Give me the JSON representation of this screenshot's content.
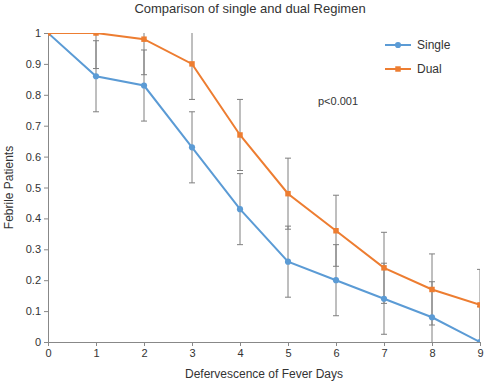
{
  "chart_data": {
    "type": "line",
    "title": "Comparison of single and dual Regimen",
    "x_label": "Defervescence of Fever Days",
    "y_label": "Febrile Patients",
    "x": [
      0,
      1,
      2,
      3,
      4,
      5,
      6,
      7,
      8,
      9
    ],
    "series": [
      {
        "name": "Single",
        "color": "#5b9bd5",
        "marker": "circle",
        "values": [
          1,
          0.86,
          0.83,
          0.63,
          0.43,
          0.26,
          0.2,
          0.14,
          0.08,
          0
        ],
        "errors": [
          0,
          0.115,
          0.115,
          0.115,
          0.115,
          0.115,
          0.115,
          0.115,
          0.115,
          0.115
        ]
      },
      {
        "name": "Dual",
        "color": "#ed7d31",
        "marker": "square",
        "values": [
          1,
          1,
          0.98,
          0.9,
          0.67,
          0.48,
          0.36,
          0.24,
          0.17,
          0.12
        ],
        "errors": [
          0,
          0.115,
          0.115,
          0.115,
          0.115,
          0.115,
          0.115,
          0.115,
          0.115,
          0.115
        ]
      }
    ],
    "xlim": [
      0,
      9
    ],
    "ylim": [
      0,
      1
    ],
    "xticks": [
      0,
      1,
      2,
      3,
      4,
      5,
      6,
      7,
      8,
      9
    ],
    "yticks": [
      0,
      0.1,
      0.2,
      0.3,
      0.4,
      0.5,
      0.6,
      0.7,
      0.8,
      0.9,
      1
    ],
    "annotation": "p<0.001",
    "legend": "upper right",
    "grid": false
  }
}
